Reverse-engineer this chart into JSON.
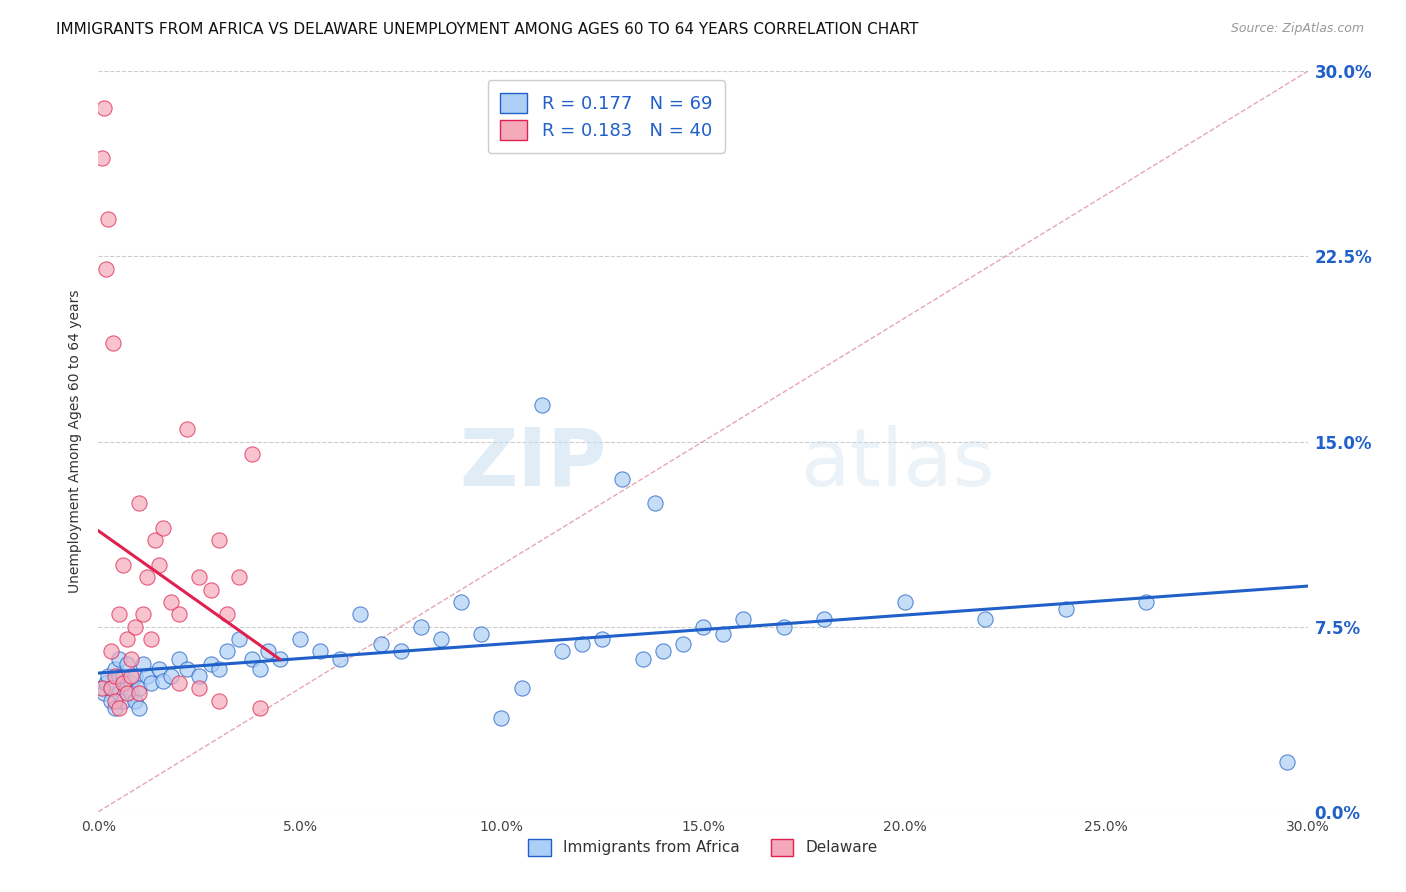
{
  "title": "IMMIGRANTS FROM AFRICA VS DELAWARE UNEMPLOYMENT AMONG AGES 60 TO 64 YEARS CORRELATION CHART",
  "source": "Source: ZipAtlas.com",
  "ylabel": "Unemployment Among Ages 60 to 64 years",
  "xlim": [
    0.0,
    30.0
  ],
  "ylim": [
    0.0,
    30.0
  ],
  "xticks": [
    0.0,
    5.0,
    10.0,
    15.0,
    20.0,
    25.0,
    30.0
  ],
  "xticklabels": [
    "0.0%",
    "5.0%",
    "10.0%",
    "15.0%",
    "20.0%",
    "25.0%",
    "30.0%"
  ],
  "yticks": [
    0.0,
    7.5,
    15.0,
    22.5,
    30.0
  ],
  "yticklabels": [
    "0.0%",
    "7.5%",
    "15.0%",
    "22.5%",
    "30.0%"
  ],
  "blue_R": 0.177,
  "blue_N": 69,
  "pink_R": 0.183,
  "pink_N": 40,
  "blue_color": "#aecff5",
  "pink_color": "#f5aabb",
  "blue_line_color": "#2060c8",
  "pink_line_color": "#e02050",
  "blue_scatter": [
    [
      0.1,
      5.0
    ],
    [
      0.15,
      4.8
    ],
    [
      0.2,
      5.2
    ],
    [
      0.25,
      5.5
    ],
    [
      0.3,
      5.0
    ],
    [
      0.3,
      4.5
    ],
    [
      0.4,
      5.8
    ],
    [
      0.4,
      4.2
    ],
    [
      0.5,
      6.2
    ],
    [
      0.5,
      5.5
    ],
    [
      0.5,
      4.8
    ],
    [
      0.6,
      5.5
    ],
    [
      0.6,
      4.5
    ],
    [
      0.7,
      6.0
    ],
    [
      0.7,
      5.0
    ],
    [
      0.8,
      5.2
    ],
    [
      0.8,
      4.8
    ],
    [
      0.9,
      5.5
    ],
    [
      0.9,
      4.5
    ],
    [
      1.0,
      5.0
    ],
    [
      1.0,
      4.2
    ],
    [
      1.1,
      6.0
    ],
    [
      1.2,
      5.5
    ],
    [
      1.3,
      5.2
    ],
    [
      1.5,
      5.8
    ],
    [
      1.6,
      5.3
    ],
    [
      1.8,
      5.5
    ],
    [
      2.0,
      6.2
    ],
    [
      2.2,
      5.8
    ],
    [
      2.5,
      5.5
    ],
    [
      2.8,
      6.0
    ],
    [
      3.0,
      5.8
    ],
    [
      3.2,
      6.5
    ],
    [
      3.5,
      7.0
    ],
    [
      3.8,
      6.2
    ],
    [
      4.0,
      5.8
    ],
    [
      4.2,
      6.5
    ],
    [
      4.5,
      6.2
    ],
    [
      5.0,
      7.0
    ],
    [
      5.5,
      6.5
    ],
    [
      6.0,
      6.2
    ],
    [
      6.5,
      8.0
    ],
    [
      7.0,
      6.8
    ],
    [
      7.5,
      6.5
    ],
    [
      8.0,
      7.5
    ],
    [
      8.5,
      7.0
    ],
    [
      9.0,
      8.5
    ],
    [
      9.5,
      7.2
    ],
    [
      10.0,
      3.8
    ],
    [
      10.5,
      5.0
    ],
    [
      11.0,
      16.5
    ],
    [
      11.5,
      6.5
    ],
    [
      12.0,
      6.8
    ],
    [
      12.5,
      7.0
    ],
    [
      13.0,
      13.5
    ],
    [
      13.5,
      6.2
    ],
    [
      13.8,
      12.5
    ],
    [
      14.0,
      6.5
    ],
    [
      14.5,
      6.8
    ],
    [
      15.0,
      7.5
    ],
    [
      15.5,
      7.2
    ],
    [
      16.0,
      7.8
    ],
    [
      17.0,
      7.5
    ],
    [
      18.0,
      7.8
    ],
    [
      20.0,
      8.5
    ],
    [
      22.0,
      7.8
    ],
    [
      24.0,
      8.2
    ],
    [
      26.0,
      8.5
    ],
    [
      29.5,
      2.0
    ]
  ],
  "pink_scatter": [
    [
      0.1,
      5.0
    ],
    [
      0.1,
      26.5
    ],
    [
      0.15,
      28.5
    ],
    [
      0.2,
      22.0
    ],
    [
      0.25,
      24.0
    ],
    [
      0.3,
      6.5
    ],
    [
      0.3,
      5.0
    ],
    [
      0.35,
      19.0
    ],
    [
      0.4,
      5.5
    ],
    [
      0.4,
      4.5
    ],
    [
      0.5,
      8.0
    ],
    [
      0.5,
      4.2
    ],
    [
      0.6,
      10.0
    ],
    [
      0.6,
      5.2
    ],
    [
      0.7,
      7.0
    ],
    [
      0.7,
      4.8
    ],
    [
      0.8,
      6.2
    ],
    [
      0.8,
      5.5
    ],
    [
      0.9,
      7.5
    ],
    [
      1.0,
      12.5
    ],
    [
      1.0,
      4.8
    ],
    [
      1.1,
      8.0
    ],
    [
      1.2,
      9.5
    ],
    [
      1.3,
      7.0
    ],
    [
      1.4,
      11.0
    ],
    [
      1.5,
      10.0
    ],
    [
      1.6,
      11.5
    ],
    [
      1.8,
      8.5
    ],
    [
      2.0,
      8.0
    ],
    [
      2.0,
      5.2
    ],
    [
      2.2,
      15.5
    ],
    [
      2.5,
      9.5
    ],
    [
      2.5,
      5.0
    ],
    [
      2.8,
      9.0
    ],
    [
      3.0,
      11.0
    ],
    [
      3.0,
      4.5
    ],
    [
      3.2,
      8.0
    ],
    [
      3.5,
      9.5
    ],
    [
      3.8,
      14.5
    ],
    [
      4.0,
      4.2
    ]
  ],
  "watermark_zip": "ZIP",
  "watermark_atlas": "atlas",
  "background_color": "#ffffff",
  "grid_color": "#cccccc",
  "diag_color": "#e08090",
  "title_fontsize": 11,
  "axis_label_fontsize": 10,
  "tick_fontsize": 10,
  "legend_label_blue": "R = 0.177   N = 69",
  "legend_label_pink": "R = 0.183   N = 40"
}
